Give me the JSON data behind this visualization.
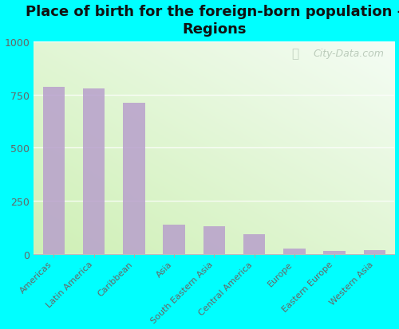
{
  "title": "Place of birth for the foreign-born population -\nRegions",
  "categories": [
    "Americas",
    "Latin America",
    "Caribbean",
    "Asia",
    "South Eastern Asia",
    "Central America",
    "Europe",
    "Eastern Europe",
    "Western Asia"
  ],
  "values": [
    785,
    780,
    710,
    140,
    130,
    95,
    28,
    15,
    18
  ],
  "bar_color": "#b8a0cc",
  "ylim": [
    0,
    1000
  ],
  "yticks": [
    0,
    250,
    500,
    750,
    1000
  ],
  "background_outer": "#00ffff",
  "title_fontsize": 13,
  "tick_label_fontsize": 8,
  "ytick_fontsize": 9,
  "grad_colors_x": [
    "#c5e8b0",
    "#e8f5e0",
    "#f5f8ee"
  ],
  "grad_colors_y_bottom": "#c8e8b0",
  "grad_colors_y_top": "#f8fcf4",
  "watermark": "City-Data.com",
  "watermark_color": "#aabcaa",
  "watermark_fontsize": 9
}
